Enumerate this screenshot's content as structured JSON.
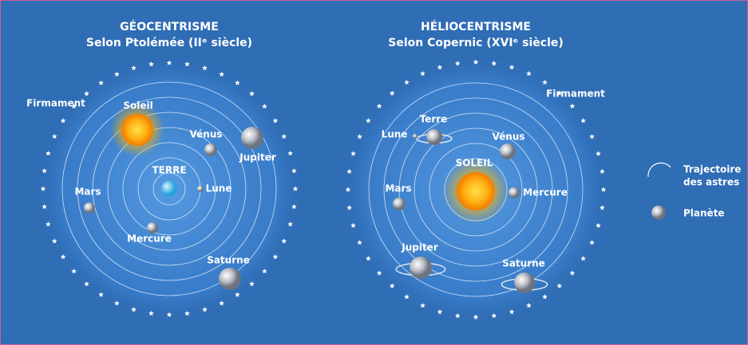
{
  "panels": [
    {
      "title": "GÉOCENTRISME",
      "subtitle": "Selon Ptolémée (IIᵉ siècle)",
      "labels": [
        "Firmament",
        "Soleil",
        "Vénus",
        "Jupiter",
        "TERRE",
        "Lune",
        "Mars",
        "Mercure",
        "Saturne"
      ]
    },
    {
      "title": "HÉLIOCENTRISME",
      "subtitle": "Selon Copernic (XVIᵉ siècle)",
      "labels": [
        "Firmament",
        "Terre",
        "Lune",
        "Vénus",
        "SOLEIL",
        "Mercure",
        "Mars",
        "Jupiter",
        "Saturne"
      ]
    }
  ],
  "legend": {
    "trajectory": [
      "Trajectoire",
      "des astres"
    ],
    "planet": "Planète"
  }
}
